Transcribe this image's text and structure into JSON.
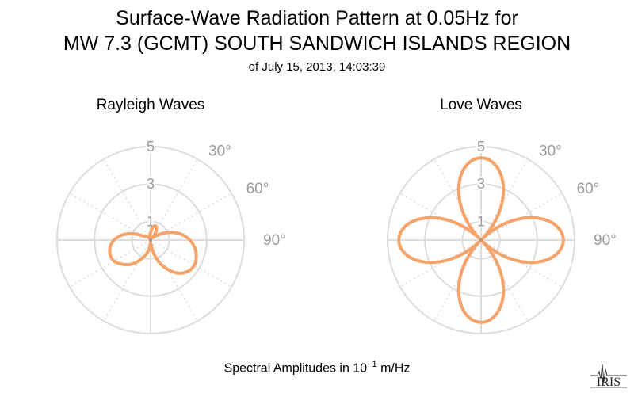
{
  "header": {
    "title_line1": "Surface-Wave Radiation Pattern at 0.05Hz for",
    "title_line2": "MW 7.3 (GCMT) SOUTH SANDWICH ISLANDS REGION",
    "subtitle": "of July 15, 2013, 14:03:39"
  },
  "footer": {
    "label_prefix": "Spectral Amplitudes in ",
    "label_base": "10",
    "label_exp": "−1",
    "label_suffix": " m/Hz"
  },
  "logo_text": "IRIS",
  "colors": {
    "pattern": "#f4a46a",
    "grid": "#dddddd",
    "tick_label": "#9a9a9a"
  },
  "chart_data": [
    {
      "type": "polar-line",
      "title": "Rayleigh Waves",
      "r_ticks": [
        "1",
        "3",
        "5"
      ],
      "r_max": 5,
      "angle_labels": [
        "30°",
        "60°",
        "90°"
      ],
      "series": [
        {
          "theta_deg": [
            0,
            10,
            20,
            30,
            40,
            50,
            60,
            70,
            80,
            90,
            100,
            110,
            120,
            130,
            140,
            150,
            160,
            170,
            180,
            190,
            200,
            210,
            220,
            230,
            240,
            250,
            260,
            270,
            280,
            290,
            300,
            310,
            320,
            330,
            340,
            350
          ],
          "r": [
            0.4,
            0.7,
            0.8,
            0.6,
            0.2,
            0.3,
            0.7,
            1.2,
            1.7,
            2.1,
            2.4,
            2.6,
            2.7,
            2.6,
            2.3,
            1.8,
            1.2,
            0.5,
            0.1,
            0.5,
            0.9,
            1.3,
            1.7,
            2.0,
            2.25,
            2.3,
            2.2,
            1.95,
            1.55,
            1.0,
            0.4,
            0.35,
            0.2,
            0.1,
            0.1,
            0.2
          ]
        }
      ]
    },
    {
      "type": "polar-line",
      "title": "Love Waves",
      "r_ticks": [
        "1",
        "3",
        "5"
      ],
      "r_max": 5,
      "angle_labels": [
        "30°",
        "60°",
        "90°"
      ],
      "series": [
        {
          "formula": "r = 4.4 * |cos(2 * theta)|"
        }
      ]
    }
  ]
}
